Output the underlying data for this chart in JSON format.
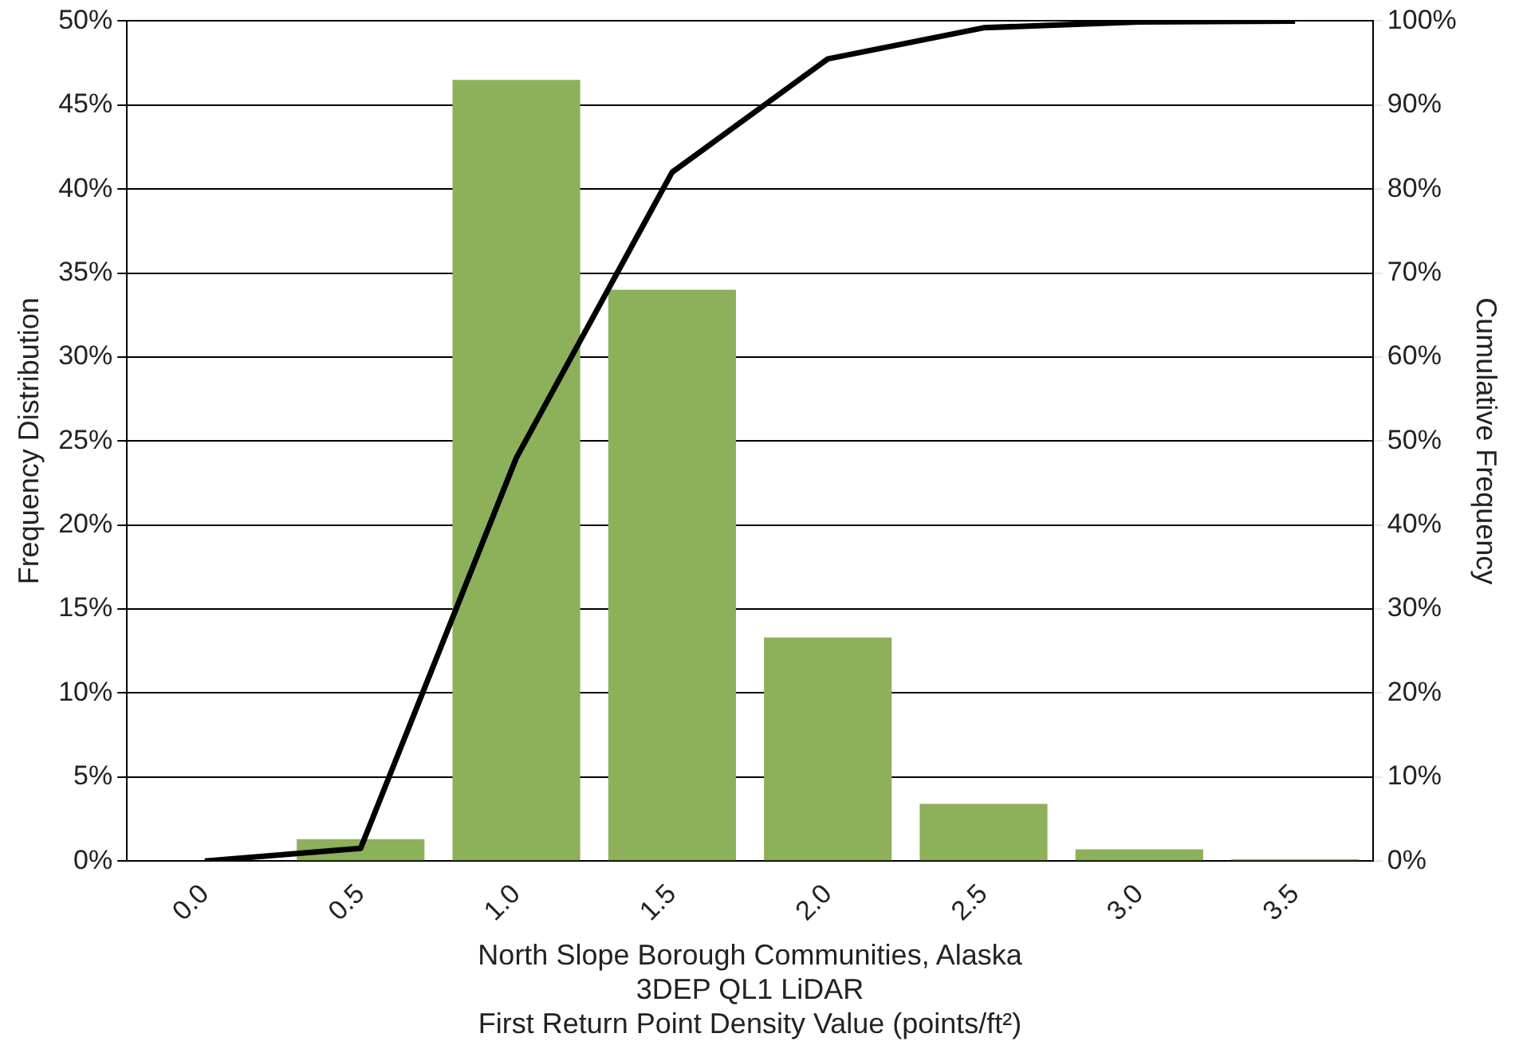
{
  "chart_data": {
    "type": "bar",
    "xlabel": "North Slope Borough Communities, Alaska\n3DEP QL1 LiDAR\nFirst Return Point Density Value (points/ft²)",
    "ylabel": "Frequency Distribution",
    "y2label": "Cumulative Frequency",
    "categories": [
      "0.0",
      "0.5",
      "1.0",
      "1.5",
      "2.0",
      "2.5",
      "3.0",
      "3.5"
    ],
    "series": [
      {
        "color": "#8db05a",
        "values": [
          0,
          1.3,
          46.5,
          34.0,
          13.3,
          3.4,
          0.7,
          0.1
        ]
      },
      {
        "type": "line",
        "axis": "y2",
        "color": "#000000",
        "values": [
          0,
          1.5,
          48,
          82,
          95.5,
          99.2,
          99.9,
          100
        ]
      }
    ],
    "ylim": [
      0,
      50
    ],
    "yticks": [
      {
        "value": 0,
        "label": "0%"
      },
      {
        "value": 5,
        "label": "5%"
      },
      {
        "value": 10,
        "label": "10%"
      },
      {
        "value": 15,
        "label": "15%"
      },
      {
        "value": 20,
        "label": "20%"
      },
      {
        "value": 25,
        "label": "25%"
      },
      {
        "value": 30,
        "label": "30%"
      },
      {
        "value": 35,
        "label": "35%"
      },
      {
        "value": 40,
        "label": "40%"
      },
      {
        "value": 45,
        "label": "45%"
      },
      {
        "value": 50,
        "label": "50%"
      }
    ],
    "y2lim": [
      0,
      100
    ],
    "y2ticks": [
      {
        "value": 0,
        "label": "0%"
      },
      {
        "value": 10,
        "label": "10%"
      },
      {
        "value": 20,
        "label": "20%"
      },
      {
        "value": 30,
        "label": "30%"
      },
      {
        "value": 40,
        "label": "40%"
      },
      {
        "value": 50,
        "label": "50%"
      },
      {
        "value": 60,
        "label": "60%"
      },
      {
        "value": 70,
        "label": "70%"
      },
      {
        "value": 80,
        "label": "80%"
      },
      {
        "value": 90,
        "label": "90%"
      },
      {
        "value": 100,
        "label": "100%"
      }
    ],
    "grid": "y",
    "legend": false,
    "marker": "none",
    "line_style": "solid"
  }
}
